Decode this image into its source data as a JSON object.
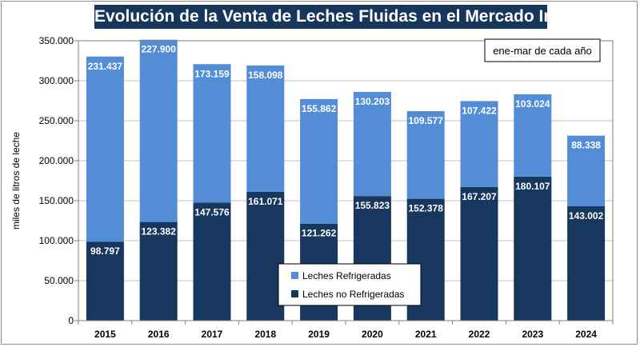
{
  "chart_data": {
    "type": "bar",
    "stacked": true,
    "title": "Evolución de la Venta de Leches Fluidas en el Mercado Interno",
    "annotation": "ene-mar de cada año",
    "ylabel": "miles de litros de leche",
    "xlabel": "",
    "ylim": [
      0,
      350000
    ],
    "yticks": [
      0,
      50000,
      100000,
      150000,
      200000,
      250000,
      300000,
      350000
    ],
    "ytick_labels": [
      "0",
      "50.000",
      "100.000",
      "150.000",
      "200.000",
      "250.000",
      "300.000",
      "350.000"
    ],
    "grid": true,
    "legend_position": "bottom-center",
    "categories": [
      "2015",
      "2016",
      "2017",
      "2018",
      "2019",
      "2020",
      "2021",
      "2022",
      "2023",
      "2024"
    ],
    "series": [
      {
        "name": "Leches no Refrigeradas",
        "color": "#17375e",
        "values": [
          98797,
          123382,
          147576,
          161071,
          121262,
          155823,
          152378,
          167207,
          180107,
          143002
        ],
        "labels": [
          "98.797",
          "123.382",
          "147.576",
          "161.071",
          "121.262",
          "155.823",
          "152.378",
          "167.207",
          "180.107",
          "143.002"
        ]
      },
      {
        "name": "Leches Refrigeradas",
        "color": "#538dd5",
        "values": [
          231437,
          227900,
          173159,
          158098,
          155862,
          130203,
          109577,
          107422,
          103024,
          88338
        ],
        "labels": [
          "231.437",
          "227.900",
          "173.159",
          "158.098",
          "155.862",
          "130.203",
          "109.577",
          "107.422",
          "103.024",
          "88.338"
        ]
      }
    ],
    "legend_order": [
      "Leches Refrigeradas",
      "Leches no Refrigeradas"
    ]
  }
}
